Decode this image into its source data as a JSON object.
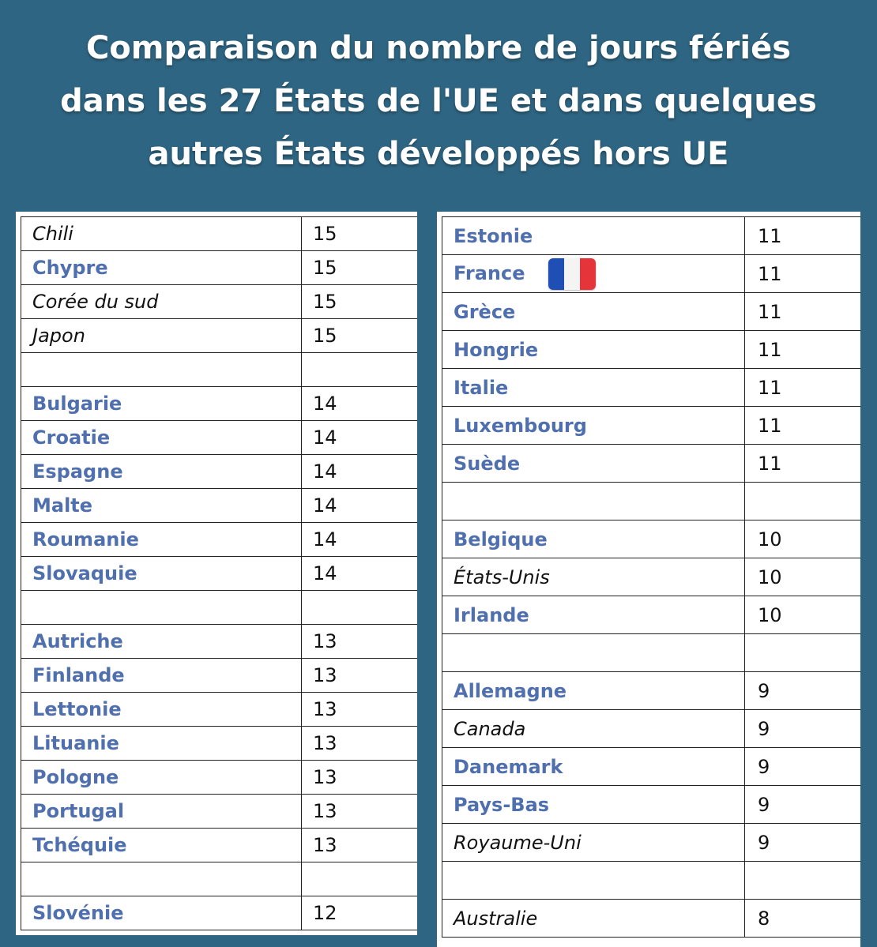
{
  "title": {
    "line1": "Comparaison du nombre de jours fériés",
    "line2": "dans les 27 États de l'UE et dans quelques",
    "line3": "autres États développés hors UE"
  },
  "colors": {
    "background": "#2e6582",
    "eu_country_text": "#4f6fae",
    "non_eu_country_text": "#111111",
    "flag_blue": "#1f4fb5",
    "flag_white": "#f4f4f4",
    "flag_red": "#e5343a"
  },
  "left_table": [
    {
      "country": "Chili",
      "days": "15",
      "eu": false
    },
    {
      "country": "Chypre",
      "days": "15",
      "eu": true
    },
    {
      "country": "Corée du sud",
      "days": "15",
      "eu": false
    },
    {
      "country": "Japon",
      "days": "15",
      "eu": false
    },
    {
      "country": "",
      "days": "",
      "eu": false
    },
    {
      "country": "Bulgarie",
      "days": "14",
      "eu": true
    },
    {
      "country": "Croatie",
      "days": "14",
      "eu": true
    },
    {
      "country": "Espagne",
      "days": "14",
      "eu": true
    },
    {
      "country": "Malte",
      "days": "14",
      "eu": true
    },
    {
      "country": "Roumanie",
      "days": "14",
      "eu": true
    },
    {
      "country": "Slovaquie",
      "days": "14",
      "eu": true
    },
    {
      "country": "",
      "days": "",
      "eu": false
    },
    {
      "country": "Autriche",
      "days": "13",
      "eu": true
    },
    {
      "country": "Finlande",
      "days": "13",
      "eu": true
    },
    {
      "country": "Lettonie",
      "days": "13",
      "eu": true
    },
    {
      "country": "Lituanie",
      "days": "13",
      "eu": true
    },
    {
      "country": "Pologne",
      "days": "13",
      "eu": true
    },
    {
      "country": "Portugal",
      "days": "13",
      "eu": true
    },
    {
      "country": "Tchéquie",
      "days": "13",
      "eu": true
    },
    {
      "country": "",
      "days": "",
      "eu": false
    },
    {
      "country": "Slovénie",
      "days": "12",
      "eu": true
    }
  ],
  "right_table": [
    {
      "country": "Estonie",
      "days": "11",
      "eu": true
    },
    {
      "country": "France",
      "days": "11",
      "eu": true,
      "flag": "french-flag-icon"
    },
    {
      "country": "Grèce",
      "days": "11",
      "eu": true
    },
    {
      "country": "Hongrie",
      "days": "11",
      "eu": true
    },
    {
      "country": "Italie",
      "days": "11",
      "eu": true
    },
    {
      "country": "Luxembourg",
      "days": "11",
      "eu": true
    },
    {
      "country": "Suède",
      "days": "11",
      "eu": true
    },
    {
      "country": "",
      "days": "",
      "eu": false
    },
    {
      "country": "Belgique",
      "days": "10",
      "eu": true
    },
    {
      "country": "États-Unis",
      "days": "10",
      "eu": false
    },
    {
      "country": "Irlande",
      "days": "10",
      "eu": true
    },
    {
      "country": "",
      "days": "",
      "eu": false
    },
    {
      "country": "Allemagne",
      "days": "9",
      "eu": true
    },
    {
      "country": "Canada",
      "days": "9",
      "eu": false
    },
    {
      "country": "Danemark",
      "days": "9",
      "eu": true
    },
    {
      "country": "Pays-Bas",
      "days": "9",
      "eu": true
    },
    {
      "country": "Royaume-Uni",
      "days": "9",
      "eu": false
    },
    {
      "country": "",
      "days": "",
      "eu": false
    },
    {
      "country": "Australie",
      "days": "8",
      "eu": false
    }
  ]
}
